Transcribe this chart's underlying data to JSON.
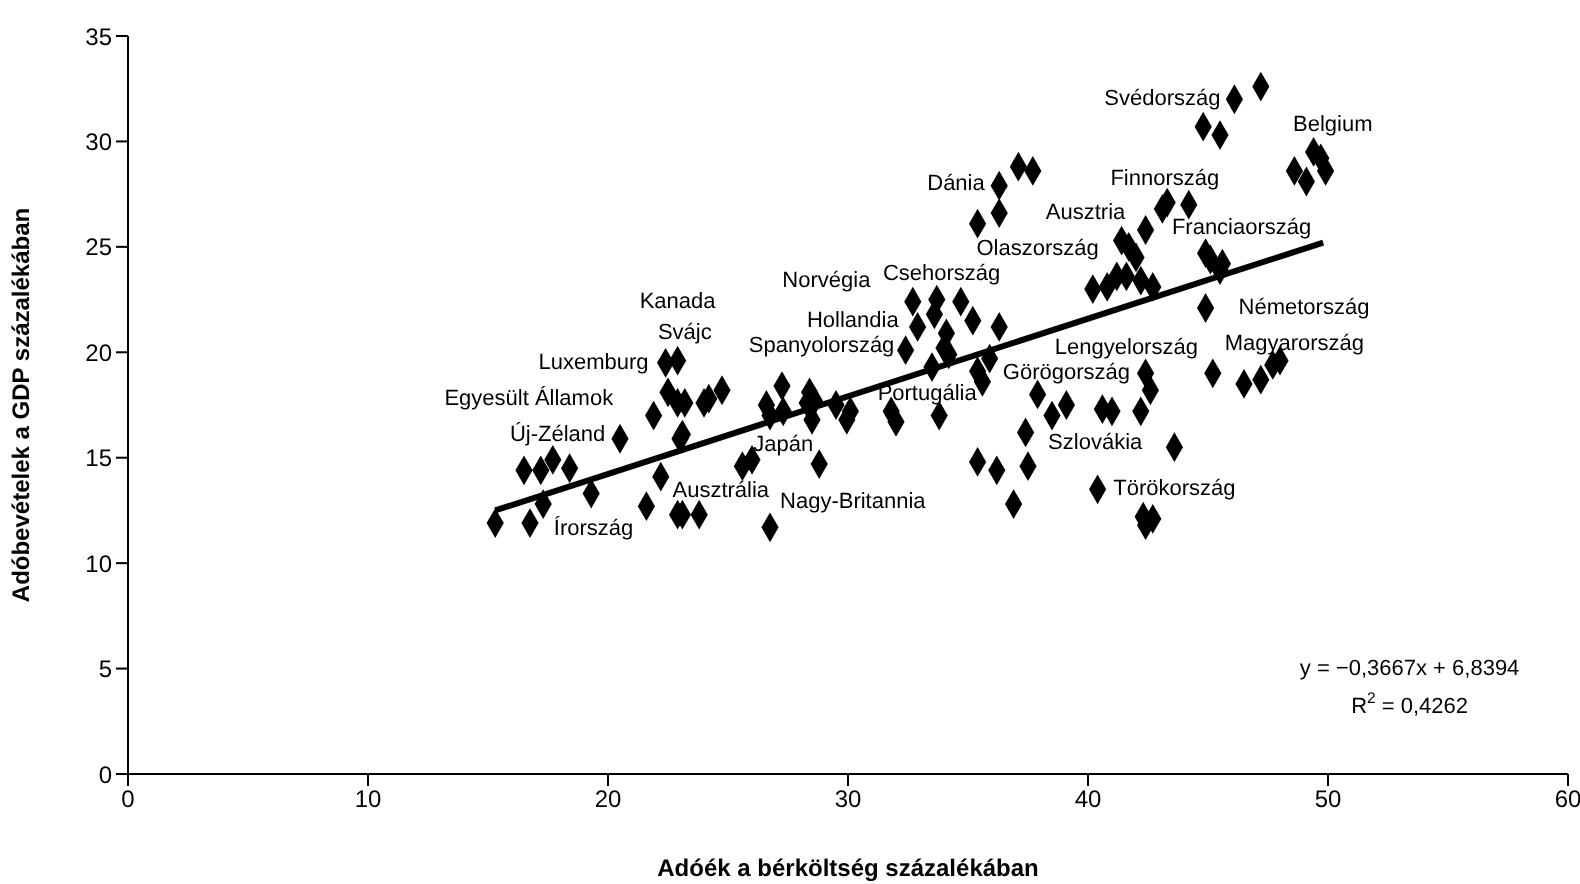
{
  "chart_data": {
    "type": "scatter",
    "xlabel": "Adóék a bérköltség százalékában",
    "ylabel": "Adóbevételek a GDP százalékában",
    "xlim": [
      0,
      60
    ],
    "xticks": [
      0,
      10,
      20,
      30,
      40,
      50,
      60
    ],
    "ylim": [
      0,
      35
    ],
    "yticks": [
      0,
      5,
      10,
      15,
      20,
      25,
      30,
      35
    ],
    "series": [
      {
        "color": "#000000",
        "marker": "diamond",
        "x": [
          15.3,
          16.75,
          16.5,
          17.2,
          17.7,
          18.4,
          17.3,
          19.3,
          20.5,
          21.9,
          22.2,
          21.6,
          22.4,
          22.9,
          22.5,
          22.9,
          23.2,
          23.0,
          23.1,
          22.9,
          23.1,
          23.8,
          24.0,
          24.2,
          24.75,
          25.6,
          26.0,
          26.75,
          26.6,
          27.25,
          27.3,
          26.75,
          28.4,
          28.6,
          28.3,
          28.5,
          28.8,
          29.5,
          30.1,
          29.95,
          31.8,
          32.0,
          32.7,
          32.9,
          32.4,
          33.6,
          33.7,
          34.1,
          34.0,
          34.2,
          33.5,
          33.8,
          34.7,
          35.2,
          36.3,
          35.4,
          35.6,
          35.9,
          36.3,
          36.3,
          35.4,
          37.1,
          37.7,
          37.9,
          38.5,
          39.1,
          37.4,
          35.4,
          36.2,
          37.5,
          36.9,
          40.6,
          41.0,
          42.2,
          42.4,
          42.6,
          40.4,
          42.3,
          42.7,
          42.4,
          43.6,
          40.2,
          40.8,
          41.2,
          41.6,
          42.2,
          42.7,
          41.4,
          41.7,
          42.0,
          42.4,
          43.1,
          43.3,
          44.2,
          44.9,
          45.1,
          45.5,
          45.6,
          44.9,
          45.2,
          46.5,
          47.2,
          47.7,
          48.0,
          44.8,
          45.5,
          46.1,
          47.2,
          49.4,
          49.7,
          49.9,
          48.6,
          49.1
        ],
        "values": [
          11.9,
          11.9,
          14.4,
          14.4,
          14.9,
          14.5,
          12.8,
          13.3,
          15.9,
          17.0,
          14.1,
          12.7,
          19.5,
          19.6,
          18.1,
          17.6,
          17.6,
          15.9,
          16.1,
          12.3,
          12.3,
          12.3,
          17.6,
          17.8,
          18.2,
          14.6,
          14.9,
          11.7,
          17.5,
          18.4,
          17.2,
          17.0,
          18.1,
          17.7,
          17.6,
          16.8,
          14.7,
          17.5,
          17.2,
          16.8,
          17.2,
          16.7,
          22.4,
          21.2,
          20.1,
          21.8,
          22.5,
          20.9,
          20.2,
          19.9,
          19.3,
          17.0,
          22.4,
          21.5,
          21.2,
          19.1,
          18.6,
          19.7,
          27.9,
          26.6,
          26.1,
          28.8,
          28.6,
          18.0,
          17.0,
          17.5,
          16.2,
          14.8,
          14.4,
          14.6,
          12.8,
          17.3,
          17.2,
          17.2,
          19.0,
          18.2,
          13.5,
          12.2,
          12.1,
          11.8,
          15.5,
          23.0,
          23.1,
          23.6,
          23.6,
          23.4,
          23.1,
          25.3,
          25.0,
          24.5,
          25.8,
          26.8,
          27.1,
          27.0,
          24.7,
          24.4,
          23.9,
          24.2,
          22.1,
          19.0,
          18.5,
          18.7,
          19.4,
          19.6,
          30.7,
          30.3,
          32.0,
          32.6,
          29.5,
          29.2,
          28.6,
          28.6,
          28.1
        ]
      },
      {
        "type": "line",
        "color": "#000000",
        "marker": "none",
        "x": [
          15.3,
          49.8
        ],
        "values": [
          12.5,
          25.2
        ]
      }
    ],
    "annotations": [
      "Svédország",
      "Belgium",
      "Dánia",
      "Finnország",
      "Ausztria",
      "Franciaország",
      "Olaszország",
      "Németország",
      "Csehország",
      "Norvégia",
      "Hollandia",
      "Kanada",
      "Svájc",
      "Spanyolország",
      "Luxemburg",
      "Egyesült Államok",
      "Új-Zéland",
      "Írország",
      "Ausztrália",
      "Japán",
      "Nagy-Britannia",
      "Portugália",
      "Görögország",
      "Lengyelország",
      "Magyarország",
      "Szlovákia",
      "Törökország",
      "y = −0,3667x + 6,8394",
      "R$^{2}$ = 0,4262"
    ]
  }
}
